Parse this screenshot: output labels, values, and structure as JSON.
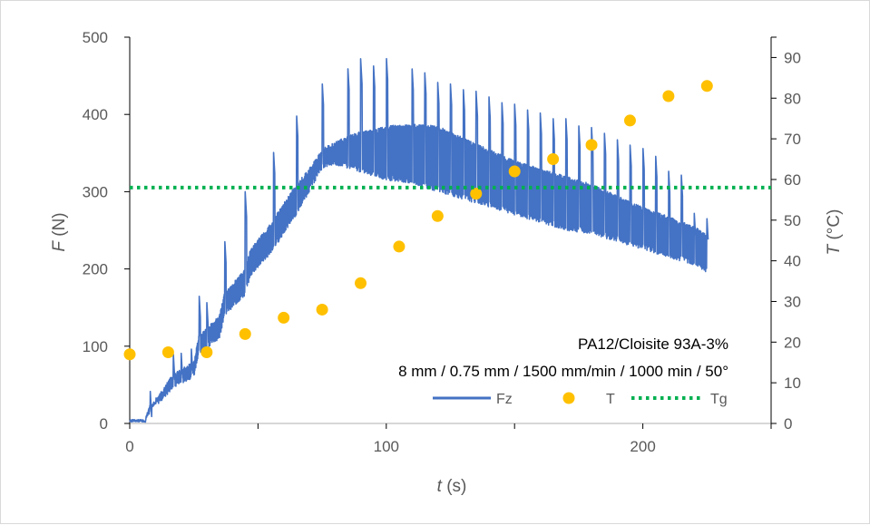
{
  "chart_data": {
    "type": "line",
    "xlabel_italic": "t",
    "xlabel_unit": " (s)",
    "ylabel_italic": "F",
    "ylabel_unit": " (N)",
    "y2label_italic": "T",
    "y2label_unit": " (°C)",
    "xlim": [
      0,
      250
    ],
    "ylim": [
      0,
      500
    ],
    "y2lim": [
      0,
      95
    ],
    "xticks": [
      "0",
      "100",
      "200"
    ],
    "yticks": [
      "0",
      "100",
      "200",
      "300",
      "400",
      "500"
    ],
    "y2ticks": [
      "0",
      "10",
      "20",
      "30",
      "40",
      "50",
      "60",
      "70",
      "80",
      "90"
    ],
    "annotation_line1": "PA12/Cloisite 93A-3%",
    "annotation_line2": "8 mm / 0.75 mm / 1500 mm/min / 1000 min / 50°",
    "legend": [
      "Fz",
      "T",
      "Tg"
    ],
    "legend_position": "bottom-right",
    "grid": false,
    "colors": {
      "Fz": "#4472c4",
      "T": "#ffc000",
      "Tg": "#00b050"
    },
    "series": [
      {
        "name": "Fz",
        "axis": "left",
        "style": "line",
        "envelope": {
          "x": [
            0,
            6,
            8,
            12,
            17,
            25,
            27,
            35,
            37,
            45,
            47,
            55,
            57,
            65,
            70,
            75,
            80,
            85,
            90,
            95,
            100,
            110,
            120,
            130,
            140,
            150,
            160,
            170,
            180,
            190,
            200,
            210,
            220,
            225
          ],
          "base": [
            2,
            5,
            25,
            40,
            65,
            80,
            115,
            140,
            170,
            200,
            225,
            260,
            270,
            310,
            330,
            355,
            365,
            372,
            378,
            380,
            385,
            388,
            385,
            370,
            355,
            340,
            330,
            320,
            310,
            295,
            280,
            268,
            255,
            245
          ],
          "low": [
            0,
            0,
            15,
            28,
            45,
            60,
            90,
            110,
            140,
            165,
            190,
            220,
            230,
            270,
            300,
            330,
            335,
            330,
            325,
            320,
            315,
            310,
            300,
            290,
            280,
            270,
            260,
            250,
            245,
            235,
            225,
            215,
            205,
            195
          ]
        },
        "spikes": {
          "x": [
            8,
            17,
            20,
            24,
            27,
            30,
            37,
            45,
            56,
            65,
            75,
            85,
            90,
            95,
            100,
            110,
            115,
            120,
            125,
            130,
            135,
            140,
            145,
            150,
            155,
            160,
            165,
            170,
            175,
            180,
            185,
            190,
            195,
            200,
            205,
            210,
            215,
            220,
            225
          ],
          "peak": [
            42,
            90,
            95,
            98,
            170,
            160,
            240,
            300,
            355,
            402,
            443,
            462,
            472,
            465,
            477,
            463,
            455,
            445,
            440,
            435,
            430,
            425,
            420,
            415,
            410,
            403,
            398,
            395,
            388,
            383,
            378,
            372,
            362,
            360,
            347,
            330,
            322,
            275,
            265
          ]
        }
      },
      {
        "name": "T",
        "axis": "right",
        "style": "markers",
        "x": [
          0,
          15,
          30,
          45,
          60,
          75,
          90,
          105,
          120,
          135,
          150,
          165,
          180,
          195,
          210,
          225
        ],
        "y": [
          17,
          17.5,
          17.5,
          22,
          26,
          28,
          34.5,
          43.5,
          51,
          56.5,
          62,
          65,
          68.5,
          74.5,
          80.5,
          83
        ]
      },
      {
        "name": "Tg",
        "axis": "right",
        "style": "dotted",
        "y": 58
      }
    ]
  }
}
